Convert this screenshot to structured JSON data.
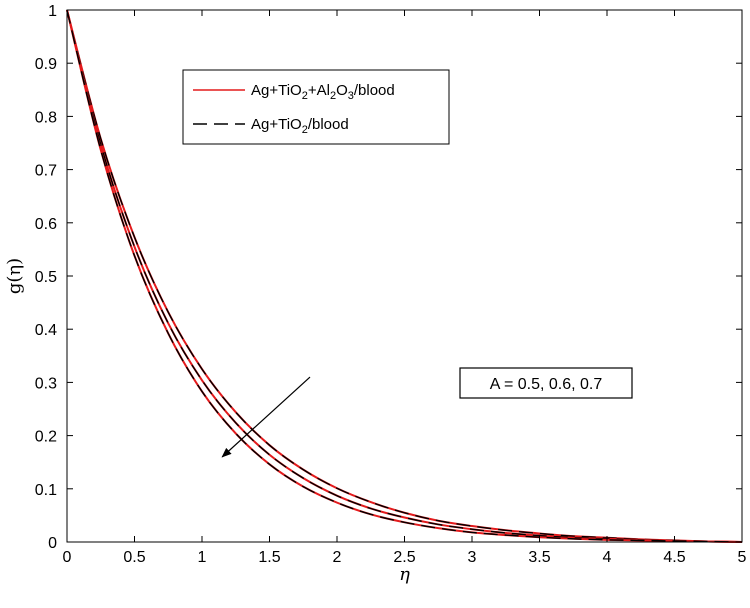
{
  "chart_data": {
    "type": "line",
    "title": "",
    "xlabel": "η",
    "ylabel": "g(η)",
    "xlim": [
      0,
      5
    ],
    "ylim": [
      0,
      1
    ],
    "xticks": [
      "0",
      "0.5",
      "1",
      "1.5",
      "2",
      "2.5",
      "3",
      "3.5",
      "4",
      "4.5",
      "5"
    ],
    "yticks": [
      "0",
      "0.1",
      "0.2",
      "0.3",
      "0.4",
      "0.5",
      "0.6",
      "0.7",
      "0.8",
      "0.9",
      "1"
    ],
    "grid": false,
    "legend_position": "top-left",
    "legend": [
      {
        "parts": [
          {
            "t": "Ag+TiO",
            "sub": false
          },
          {
            "t": "2",
            "sub": true
          },
          {
            "t": "+Al",
            "sub": false
          },
          {
            "t": "2",
            "sub": true
          },
          {
            "t": "O",
            "sub": false
          },
          {
            "t": "3",
            "sub": true
          },
          {
            "t": "/blood",
            "sub": false
          }
        ],
        "color": "#e41a1c",
        "dash": "solid"
      },
      {
        "parts": [
          {
            "t": "Ag+TiO",
            "sub": false
          },
          {
            "t": "2",
            "sub": true
          },
          {
            "t": "/blood",
            "sub": false
          }
        ],
        "color": "#000000",
        "dash": "dashed"
      }
    ],
    "annotation": {
      "text": "A = 0.5, 0.6, 0.7",
      "arrow_from": [
        1.8,
        0.31
      ],
      "arrow_to": [
        1.15,
        0.16
      ]
    },
    "x": [
      0,
      0.25,
      0.5,
      0.75,
      1,
      1.25,
      1.5,
      1.75,
      2,
      2.25,
      2.5,
      2.75,
      3,
      3.25,
      3.5,
      3.75,
      4,
      4.25,
      4.5,
      4.75,
      5
    ],
    "series": [
      {
        "group": "A = 0.5",
        "fluid": "Ag+TiO2+Al2O3/blood",
        "color": "#e41a1c",
        "dash": "solid",
        "values": [
          1.0,
          0.758,
          0.573,
          0.432,
          0.325,
          0.244,
          0.182,
          0.136,
          0.101,
          0.075,
          0.055,
          0.04,
          0.03,
          0.022,
          0.016,
          0.011,
          0.008,
          0.005,
          0.003,
          0.001,
          0.0
        ]
      },
      {
        "group": "A = 0.5",
        "fluid": "Ag+TiO2/blood",
        "color": "#000000",
        "dash": "dashed",
        "values": [
          1.0,
          0.758,
          0.573,
          0.432,
          0.325,
          0.244,
          0.182,
          0.136,
          0.101,
          0.075,
          0.055,
          0.04,
          0.03,
          0.022,
          0.016,
          0.011,
          0.008,
          0.005,
          0.003,
          0.001,
          0.0
        ]
      },
      {
        "group": "A = 0.6",
        "fluid": "Ag+TiO2+Al2O3/blood",
        "color": "#e41a1c",
        "dash": "solid",
        "values": [
          1.0,
          0.747,
          0.555,
          0.411,
          0.304,
          0.224,
          0.164,
          0.12,
          0.087,
          0.063,
          0.046,
          0.033,
          0.024,
          0.017,
          0.012,
          0.008,
          0.006,
          0.004,
          0.002,
          0.001,
          0.0
        ]
      },
      {
        "group": "A = 0.6",
        "fluid": "Ag+TiO2/blood",
        "color": "#000000",
        "dash": "dashed",
        "values": [
          1.0,
          0.747,
          0.555,
          0.411,
          0.304,
          0.224,
          0.164,
          0.12,
          0.087,
          0.063,
          0.046,
          0.033,
          0.024,
          0.017,
          0.012,
          0.008,
          0.006,
          0.004,
          0.002,
          0.001,
          0.0
        ]
      },
      {
        "group": "A = 0.7",
        "fluid": "Ag+TiO2+Al2O3/blood",
        "color": "#e41a1c",
        "dash": "solid",
        "values": [
          1.0,
          0.737,
          0.538,
          0.392,
          0.283,
          0.204,
          0.146,
          0.104,
          0.074,
          0.052,
          0.037,
          0.026,
          0.018,
          0.013,
          0.009,
          0.006,
          0.004,
          0.003,
          0.002,
          0.001,
          0.0
        ]
      },
      {
        "group": "A = 0.7",
        "fluid": "Ag+TiO2/blood",
        "color": "#000000",
        "dash": "dashed",
        "values": [
          1.0,
          0.737,
          0.538,
          0.392,
          0.283,
          0.204,
          0.146,
          0.104,
          0.074,
          0.052,
          0.037,
          0.026,
          0.018,
          0.013,
          0.009,
          0.006,
          0.004,
          0.003,
          0.002,
          0.001,
          0.0
        ]
      }
    ]
  }
}
